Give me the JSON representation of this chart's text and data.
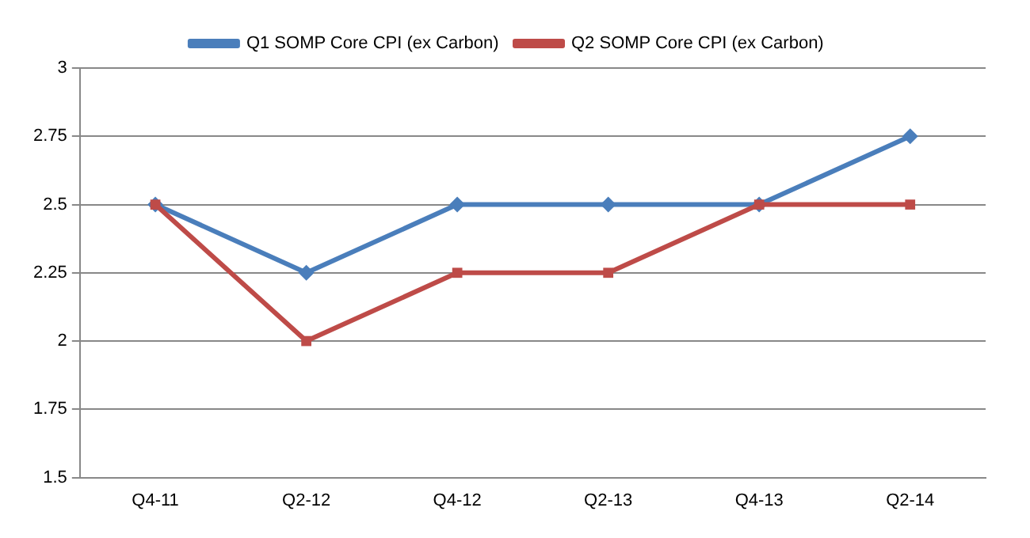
{
  "chart_data": {
    "type": "line",
    "categories": [
      "Q4-11",
      "Q2-12",
      "Q4-12",
      "Q2-13",
      "Q4-13",
      "Q2-14"
    ],
    "series": [
      {
        "name": "Q1 SOMP Core CPI (ex Carbon)",
        "color": "#4a7ebb",
        "marker": "diamond",
        "values": [
          2.5,
          2.25,
          2.5,
          2.5,
          2.5,
          2.75
        ]
      },
      {
        "name": "Q2 SOMP Core CPI (ex Carbon)",
        "color": "#be4b48",
        "marker": "square",
        "values": [
          2.5,
          2,
          2.25,
          2.25,
          2.5,
          2.5
        ]
      }
    ],
    "ylim": [
      1.5,
      3
    ],
    "yticks": [
      1.5,
      1.75,
      2,
      2.25,
      2.5,
      2.75,
      3
    ],
    "grid": "y",
    "legend": "top"
  }
}
